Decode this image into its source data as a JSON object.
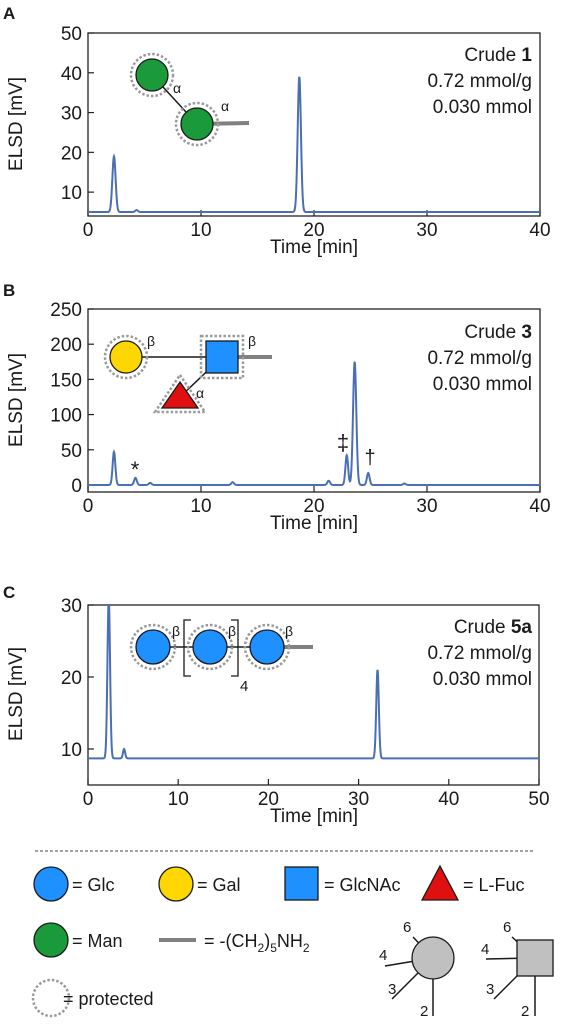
{
  "colors": {
    "trace": "#4a6fb5",
    "glc": "#1e90ff",
    "gal": "#ffd700",
    "glcnac": "#1e90ff",
    "fuc": "#e01010",
    "man": "#1a9a3a",
    "linker": "#808080",
    "protected": "#9a9a9a",
    "node_gray": "#c0c0c0"
  },
  "panels": [
    {
      "letter": "A",
      "crude_prefix": "Crude ",
      "crude_num": "1",
      "loading": "0.72 mmol/g",
      "amount": "0.030 mmol",
      "glycan_links": [
        "α",
        "α"
      ],
      "bracket_sub": ""
    },
    {
      "letter": "B",
      "crude_prefix": "Crude ",
      "crude_num": "3",
      "loading": "0.72 mmol/g",
      "amount": "0.030 mmol",
      "glycan_links": [
        "β",
        "β",
        "α"
      ],
      "bracket_sub": "",
      "annotations": [
        "*",
        "‡",
        "†"
      ]
    },
    {
      "letter": "C",
      "crude_prefix": "Crude ",
      "crude_num": "5a",
      "loading": "0.72 mmol/g",
      "amount": "0.030 mmol",
      "glycan_links": [
        "β",
        "β",
        "β"
      ],
      "bracket_sub": "4"
    }
  ],
  "chart_data": [
    {
      "type": "line",
      "xlabel": "Time [min]",
      "ylabel": "ELSD [mV]",
      "xlim": [
        0,
        40
      ],
      "ylim": [
        4,
        50
      ],
      "xticks": [
        0,
        10,
        20,
        30,
        40
      ],
      "yticks": [
        10,
        20,
        30,
        40,
        50
      ],
      "baseline": 5,
      "peaks": [
        {
          "x": 2.3,
          "y": 19
        },
        {
          "x": 4.3,
          "y": 5.5
        },
        {
          "x": 18.7,
          "y": 39
        }
      ]
    },
    {
      "type": "line",
      "xlabel": "Time [min]",
      "ylabel": "ELSD [mV]",
      "xlim": [
        0,
        40
      ],
      "ylim": [
        -10,
        250
      ],
      "xticks": [
        0,
        10,
        20,
        30,
        40
      ],
      "yticks": [
        0,
        50,
        100,
        150,
        200,
        250
      ],
      "baseline": 0,
      "peaks": [
        {
          "x": 2.3,
          "y": 47
        },
        {
          "x": 4.2,
          "y": 10
        },
        {
          "x": 5.5,
          "y": 3
        },
        {
          "x": 12.8,
          "y": 4
        },
        {
          "x": 21.3,
          "y": 6
        },
        {
          "x": 22.9,
          "y": 42
        },
        {
          "x": 23.6,
          "y": 175
        },
        {
          "x": 24.8,
          "y": 17
        },
        {
          "x": 28.0,
          "y": 2
        }
      ]
    },
    {
      "type": "line",
      "xlabel": "Time [min]",
      "ylabel": "ELSD [mV]",
      "xlim": [
        0,
        50
      ],
      "ylim": [
        5,
        30
      ],
      "xticks": [
        0,
        10,
        20,
        30,
        40,
        50
      ],
      "yticks": [
        10,
        20,
        30
      ],
      "baseline": 8.7,
      "peaks": [
        {
          "x": 2.3,
          "y": 31
        },
        {
          "x": 4.0,
          "y": 10
        },
        {
          "x": 32.1,
          "y": 21
        }
      ]
    }
  ],
  "legend": {
    "glc": "= Glc",
    "gal": "= Gal",
    "glcnac": "= GlcNAc",
    "fuc": "= L-Fuc",
    "man": "= Man",
    "linker_prefix": "= -(CH",
    "linker_sub1": "2",
    "linker_mid": ")",
    "linker_sub2": "5",
    "linker_suffix": "NH",
    "linker_sub3": "2",
    "protected": "= protected",
    "positions": [
      "6",
      "4",
      "3",
      "2"
    ]
  }
}
